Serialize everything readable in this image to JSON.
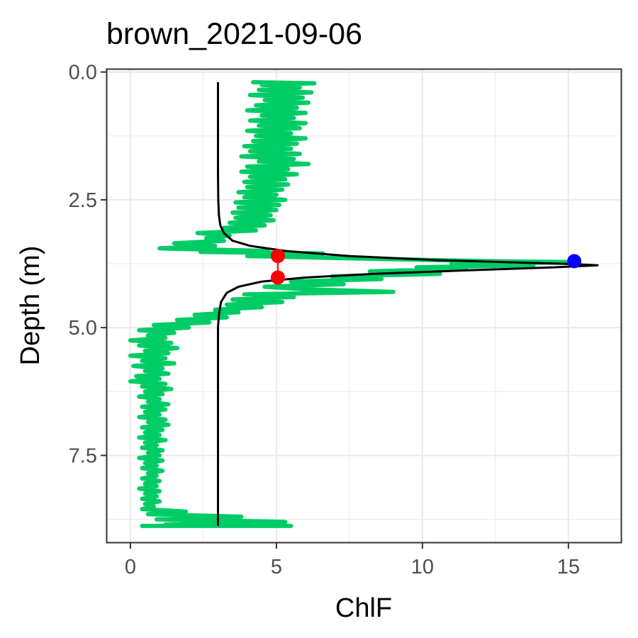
{
  "chart_data": {
    "type": "line",
    "title": "brown_2021-09-06",
    "xlabel": "ChlF",
    "ylabel": "Depth (m)",
    "xlim": [
      -0.8,
      16.8
    ],
    "ylim": [
      9.2,
      -0.05
    ],
    "y_reversed": true,
    "x_ticks": [
      0,
      5,
      10,
      15
    ],
    "x_tick_labels": [
      "0",
      "5",
      "10",
      "15"
    ],
    "y_ticks": [
      0,
      2.5,
      5,
      7.5
    ],
    "y_tick_labels": [
      "0.0",
      "2.5",
      "5.0",
      "7.5"
    ],
    "grid": true,
    "legend": "none",
    "colors": {
      "profile": "#00CC66",
      "fit": "#000000",
      "peak": "#0000FF",
      "bounds": "#FF0000",
      "grid": "#EBEBEB",
      "panel_border": "#333333"
    },
    "series": [
      {
        "kind": "observed-profile",
        "points": [
          [
            4.2,
            0.2
          ],
          [
            6.3,
            0.22
          ],
          [
            4.5,
            0.25
          ],
          [
            5.8,
            0.3
          ],
          [
            4.4,
            0.35
          ],
          [
            6.2,
            0.4
          ],
          [
            4.1,
            0.45
          ],
          [
            5.9,
            0.5
          ],
          [
            4.6,
            0.55
          ],
          [
            6.1,
            0.6
          ],
          [
            4.3,
            0.65
          ],
          [
            5.7,
            0.7
          ],
          [
            4.0,
            0.75
          ],
          [
            6.0,
            0.8
          ],
          [
            4.5,
            0.85
          ],
          [
            5.6,
            0.9
          ],
          [
            4.1,
            0.95
          ],
          [
            6.0,
            1.0
          ],
          [
            4.4,
            1.05
          ],
          [
            5.8,
            1.1
          ],
          [
            4.0,
            1.15
          ],
          [
            5.5,
            1.2
          ],
          [
            4.3,
            1.25
          ],
          [
            6.0,
            1.3
          ],
          [
            4.2,
            1.35
          ],
          [
            5.7,
            1.4
          ],
          [
            3.9,
            1.45
          ],
          [
            5.5,
            1.5
          ],
          [
            4.1,
            1.55
          ],
          [
            5.8,
            1.6
          ],
          [
            3.8,
            1.65
          ],
          [
            5.6,
            1.7
          ],
          [
            4.4,
            1.75
          ],
          [
            6.1,
            1.8
          ],
          [
            4.0,
            1.85
          ],
          [
            5.4,
            1.9
          ],
          [
            3.8,
            1.95
          ],
          [
            5.7,
            2.0
          ],
          [
            4.1,
            2.05
          ],
          [
            5.3,
            2.1
          ],
          [
            3.9,
            2.15
          ],
          [
            5.4,
            2.2
          ],
          [
            4.0,
            2.25
          ],
          [
            5.2,
            2.3
          ],
          [
            3.7,
            2.35
          ],
          [
            5.0,
            2.4
          ],
          [
            3.9,
            2.45
          ],
          [
            5.3,
            2.5
          ],
          [
            3.6,
            2.55
          ],
          [
            5.1,
            2.6
          ],
          [
            3.7,
            2.65
          ],
          [
            5.0,
            2.7
          ],
          [
            3.5,
            2.75
          ],
          [
            4.8,
            2.8
          ],
          [
            3.6,
            2.85
          ],
          [
            4.9,
            2.9
          ],
          [
            3.4,
            2.95
          ],
          [
            4.6,
            3.0
          ],
          [
            3.2,
            3.05
          ],
          [
            4.3,
            3.1
          ],
          [
            2.3,
            3.15
          ],
          [
            3.4,
            3.2
          ],
          [
            2.6,
            3.25
          ],
          [
            3.2,
            3.3
          ],
          [
            1.5,
            3.35
          ],
          [
            2.9,
            3.4
          ],
          [
            1.0,
            3.45
          ],
          [
            4.7,
            3.5
          ],
          [
            2.4,
            3.52
          ],
          [
            6.6,
            3.55
          ],
          [
            4.0,
            3.6
          ],
          [
            8.0,
            3.65
          ],
          [
            12.2,
            3.7
          ],
          [
            15.3,
            3.72
          ],
          [
            11.0,
            3.75
          ],
          [
            13.8,
            3.78
          ],
          [
            9.8,
            3.82
          ],
          [
            11.5,
            3.85
          ],
          [
            8.2,
            3.9
          ],
          [
            10.6,
            3.95
          ],
          [
            6.9,
            4.0
          ],
          [
            8.6,
            4.05
          ],
          [
            5.5,
            4.1
          ],
          [
            7.3,
            4.15
          ],
          [
            4.6,
            4.2
          ],
          [
            6.0,
            4.25
          ],
          [
            9.0,
            4.3
          ],
          [
            3.9,
            4.35
          ],
          [
            5.6,
            4.4
          ],
          [
            3.5,
            4.45
          ],
          [
            5.2,
            4.5
          ],
          [
            3.3,
            4.55
          ],
          [
            4.5,
            4.6
          ],
          [
            2.9,
            4.65
          ],
          [
            3.7,
            4.7
          ],
          [
            2.2,
            4.75
          ],
          [
            3.3,
            4.8
          ],
          [
            1.6,
            4.85
          ],
          [
            2.7,
            4.9
          ],
          [
            0.8,
            4.95
          ],
          [
            2.0,
            5.0
          ],
          [
            0.3,
            5.05
          ],
          [
            1.5,
            5.1
          ],
          [
            0.6,
            5.15
          ],
          [
            1.2,
            5.2
          ],
          [
            0.0,
            5.25
          ],
          [
            1.4,
            5.3
          ],
          [
            0.3,
            5.35
          ],
          [
            1.6,
            5.4
          ],
          [
            0.5,
            5.45
          ],
          [
            1.3,
            5.5
          ],
          [
            0.0,
            5.55
          ],
          [
            1.2,
            5.6
          ],
          [
            0.4,
            5.65
          ],
          [
            1.5,
            5.7
          ],
          [
            0.1,
            5.75
          ],
          [
            1.1,
            5.8
          ],
          [
            0.5,
            5.85
          ],
          [
            1.3,
            5.9
          ],
          [
            0.2,
            5.95
          ],
          [
            1.0,
            6.0
          ],
          [
            0.0,
            6.05
          ],
          [
            1.2,
            6.1
          ],
          [
            0.4,
            6.15
          ],
          [
            1.4,
            6.2
          ],
          [
            0.5,
            6.25
          ],
          [
            1.1,
            6.3
          ],
          [
            0.3,
            6.35
          ],
          [
            1.0,
            6.4
          ],
          [
            0.6,
            6.45
          ],
          [
            1.3,
            6.5
          ],
          [
            0.4,
            6.55
          ],
          [
            1.2,
            6.6
          ],
          [
            0.5,
            6.65
          ],
          [
            1.0,
            6.7
          ],
          [
            0.3,
            6.75
          ],
          [
            1.2,
            6.8
          ],
          [
            0.6,
            6.85
          ],
          [
            1.3,
            6.9
          ],
          [
            0.4,
            6.95
          ],
          [
            1.1,
            7.0
          ],
          [
            0.5,
            7.05
          ],
          [
            1.0,
            7.1
          ],
          [
            0.3,
            7.15
          ],
          [
            1.2,
            7.2
          ],
          [
            0.5,
            7.25
          ],
          [
            0.9,
            7.3
          ],
          [
            0.4,
            7.35
          ],
          [
            1.1,
            7.4
          ],
          [
            0.6,
            7.45
          ],
          [
            1.0,
            7.5
          ],
          [
            0.3,
            7.55
          ],
          [
            1.1,
            7.6
          ],
          [
            0.5,
            7.65
          ],
          [
            0.9,
            7.7
          ],
          [
            0.4,
            7.75
          ],
          [
            1.1,
            7.8
          ],
          [
            0.6,
            7.85
          ],
          [
            0.9,
            7.9
          ],
          [
            0.4,
            7.95
          ],
          [
            1.0,
            8.0
          ],
          [
            0.5,
            8.05
          ],
          [
            0.9,
            8.1
          ],
          [
            0.3,
            8.15
          ],
          [
            1.0,
            8.2
          ],
          [
            0.5,
            8.25
          ],
          [
            0.9,
            8.3
          ],
          [
            0.4,
            8.35
          ],
          [
            1.0,
            8.4
          ],
          [
            0.5,
            8.45
          ],
          [
            0.8,
            8.5
          ],
          [
            0.4,
            8.55
          ],
          [
            1.9,
            8.6
          ],
          [
            0.6,
            8.65
          ],
          [
            3.8,
            8.7
          ],
          [
            0.9,
            8.75
          ],
          [
            5.3,
            8.8
          ],
          [
            1.2,
            8.85
          ],
          [
            5.5,
            8.88
          ],
          [
            0.4,
            8.88
          ]
        ]
      },
      {
        "kind": "fitted-curve",
        "points": [
          [
            3.0,
            0.2
          ],
          [
            3.0,
            1.0
          ],
          [
            3.0,
            2.0
          ],
          [
            3.01,
            2.5
          ],
          [
            3.03,
            2.8
          ],
          [
            3.08,
            3.0
          ],
          [
            3.2,
            3.15
          ],
          [
            3.5,
            3.3
          ],
          [
            4.1,
            3.4
          ],
          [
            5.3,
            3.5
          ],
          [
            7.5,
            3.6
          ],
          [
            10.5,
            3.68
          ],
          [
            13.5,
            3.73
          ],
          [
            15.3,
            3.76
          ],
          [
            16.0,
            3.78
          ],
          [
            14.5,
            3.82
          ],
          [
            11.5,
            3.88
          ],
          [
            8.3,
            3.95
          ],
          [
            6.0,
            4.02
          ],
          [
            4.5,
            4.1
          ],
          [
            3.7,
            4.2
          ],
          [
            3.3,
            4.32
          ],
          [
            3.1,
            4.5
          ],
          [
            3.03,
            4.75
          ],
          [
            3.0,
            5.0
          ],
          [
            3.0,
            6.0
          ],
          [
            3.0,
            7.0
          ],
          [
            3.0,
            8.0
          ],
          [
            3.0,
            8.88
          ]
        ]
      }
    ],
    "annotations": {
      "peak": {
        "x": 15.2,
        "y": 3.7
      },
      "bounds": [
        {
          "x": 5.05,
          "y": 3.6
        },
        {
          "x": 5.05,
          "y": 4.02
        }
      ]
    }
  }
}
